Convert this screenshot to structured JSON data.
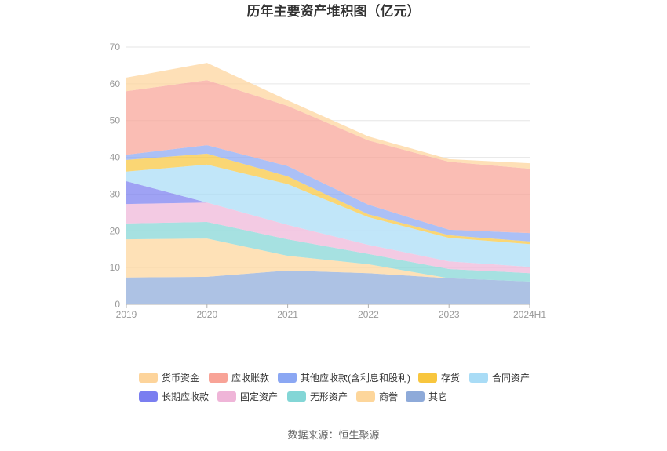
{
  "source": "数据来源：恒生聚源",
  "chart_data": {
    "type": "area",
    "stacked": true,
    "title": "历年主要资产堆积图（亿元）",
    "xlabel": "",
    "ylabel": "",
    "categories": [
      "2019",
      "2020",
      "2021",
      "2022",
      "2023",
      "2024H1"
    ],
    "ylim": [
      0,
      70
    ],
    "yticks": [
      0,
      10,
      20,
      30,
      40,
      50,
      60,
      70
    ],
    "grid": true,
    "legend_position": "bottom",
    "series": [
      {
        "name": "货币资金",
        "color": "#fdd49b",
        "values": [
          3.7,
          4.7,
          1.5,
          1.1,
          0.7,
          1.5
        ]
      },
      {
        "name": "应收账款",
        "color": "#f8a397",
        "values": [
          17.3,
          17.7,
          16.4,
          17.5,
          18.5,
          17.5
        ]
      },
      {
        "name": "其他应收款(含利息和股利)",
        "color": "#8ba7f3",
        "values": [
          1.4,
          2.3,
          2.8,
          2.6,
          1.5,
          2.3
        ]
      },
      {
        "name": "存货",
        "color": "#f8c63e",
        "values": [
          3.2,
          3.0,
          2.1,
          0.8,
          0.7,
          0.7
        ]
      },
      {
        "name": "合同资产",
        "color": "#a9dcf6",
        "values": [
          2.6,
          10.3,
          11.1,
          7.5,
          6.4,
          6.2
        ]
      },
      {
        "name": "长期应收款",
        "color": "#7a7ef0",
        "values": [
          6.2,
          0,
          0,
          0,
          0,
          0
        ]
      },
      {
        "name": "固定资产",
        "color": "#efb5d8",
        "values": [
          5.3,
          5.3,
          3.9,
          2.5,
          2.1,
          1.7
        ]
      },
      {
        "name": "无形资产",
        "color": "#83d6d6",
        "values": [
          4.3,
          4.5,
          4.5,
          2.8,
          2.5,
          2.3
        ]
      },
      {
        "name": "商誉",
        "color": "#fdd69b",
        "values": [
          10.4,
          10.4,
          4.0,
          2.4,
          0,
          0
        ]
      },
      {
        "name": "其它",
        "color": "#8eaad9",
        "values": [
          7.3,
          7.5,
          9.2,
          8.5,
          7.1,
          6.2
        ]
      }
    ]
  }
}
